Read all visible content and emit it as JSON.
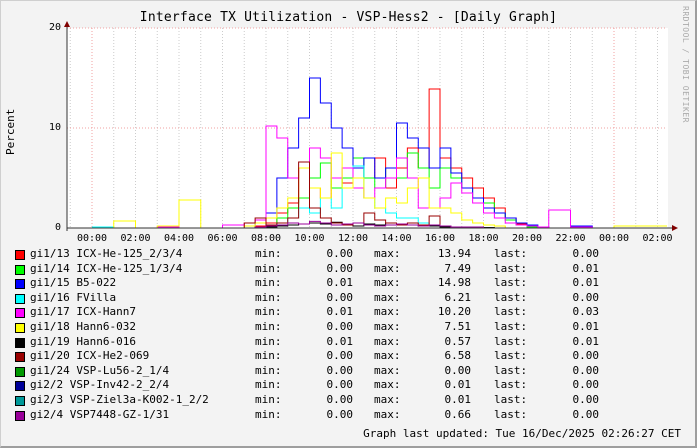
{
  "title": "Interface TX Utilization - VSP-Hess2 - [Daily Graph]",
  "watermark": "RRDTOOL / TOBI OETIKER",
  "footer": {
    "updated": "Graph last updated: Tue 16/Dec/2025 02:26:27 CET"
  },
  "legend_labels": {
    "min": "min:",
    "max": "max:",
    "last": "last:"
  },
  "chart_data": {
    "type": "line",
    "title": "Interface TX Utilization - VSP-Hess2 - [Daily Graph]",
    "xlabel": "",
    "ylabel": "Percent",
    "ylim": [
      0,
      20
    ],
    "yticks": [
      "0",
      "10",
      "20"
    ],
    "xticks": [
      "00:00",
      "02:00",
      "04:00",
      "06:00",
      "08:00",
      "10:00",
      "12:00",
      "14:00",
      "16:00",
      "18:00",
      "20:00",
      "22:00",
      "00:00",
      "02:00"
    ],
    "grid": true,
    "legend_position": "bottom",
    "x_hours": [
      0,
      1,
      2,
      3,
      4,
      5,
      6,
      7,
      7.5,
      8,
      8.5,
      9,
      9.5,
      10,
      10.5,
      11,
      11.5,
      12,
      12.5,
      13,
      13.5,
      14,
      14.5,
      15,
      15.5,
      16,
      16.5,
      17,
      17.5,
      18,
      18.5,
      19,
      19.5,
      20,
      20.5,
      21,
      22,
      23,
      24,
      25,
      26
    ],
    "series": [
      {
        "name": "gi1/13 ICX-He-125_2/3/4",
        "color": "#ff0000",
        "min": "0.00",
        "max": "13.94",
        "last": "0.00",
        "values": [
          0,
          0,
          0,
          0,
          0,
          0,
          0,
          0,
          0.2,
          0.5,
          1.5,
          2.5,
          6,
          4,
          3,
          5,
          4.5,
          6,
          5,
          7,
          4,
          6,
          8,
          6,
          13.9,
          7,
          6,
          5,
          4,
          3,
          2,
          1,
          0.4,
          0.2,
          0.1,
          0,
          0,
          0,
          0,
          0,
          0
        ]
      },
      {
        "name": "gi1/14 ICX-He-125_1/3/4",
        "color": "#00ff00",
        "min": "0.00",
        "max": "7.49",
        "last": "0.01",
        "values": [
          0,
          0,
          0,
          0,
          0,
          0,
          0,
          0,
          0,
          0.3,
          1,
          2,
          3,
          5,
          6.5,
          4,
          5,
          7,
          5,
          4,
          6,
          5,
          7.5,
          6,
          4,
          6,
          5,
          4,
          3,
          2.5,
          1.5,
          0.8,
          0.3,
          0.1,
          0,
          0,
          0,
          0,
          0,
          0,
          0
        ]
      },
      {
        "name": "gi1/15 B5-022",
        "color": "#0000ff",
        "min": "0.01",
        "max": "14.98",
        "last": "0.01",
        "values": [
          0,
          0,
          0,
          0,
          0,
          0,
          0,
          0,
          0.5,
          1.5,
          5,
          8,
          11,
          15,
          12.5,
          10,
          8,
          6,
          7,
          5,
          6,
          10.5,
          9,
          8,
          6,
          8,
          5.5,
          4,
          3,
          2,
          1.5,
          1,
          0.5,
          0.3,
          0.1,
          0,
          0.2,
          0,
          0,
          0,
          0
        ]
      },
      {
        "name": "gi1/16 FVilla",
        "color": "#00ffff",
        "min": "0.00",
        "max": "6.21",
        "last": "0.00",
        "values": [
          0.1,
          0,
          0,
          0,
          0,
          0,
          0,
          0,
          0,
          0.2,
          0.5,
          1,
          2,
          1.5,
          3,
          2,
          4,
          6.2,
          3,
          2,
          1.5,
          1,
          1,
          0.5,
          0.3,
          0.2,
          0.1,
          0.1,
          0,
          0,
          0,
          0,
          0,
          0,
          0,
          0,
          0,
          0,
          0,
          0,
          0
        ]
      },
      {
        "name": "gi1/17 ICX-Hann7",
        "color": "#ff00ff",
        "min": "0.01",
        "max": "10.20",
        "last": "0.03",
        "values": [
          0,
          0,
          0,
          0.1,
          0,
          0,
          0.3,
          0.5,
          0.8,
          10.2,
          9,
          5,
          6,
          8,
          7,
          5,
          6,
          4,
          3,
          4,
          5,
          7,
          5,
          2,
          2,
          3,
          4.5,
          3.5,
          2.5,
          1.5,
          1,
          0.5,
          0.3,
          0.2,
          0.1,
          1.8,
          0.1,
          0,
          0,
          0,
          0
        ]
      },
      {
        "name": "gi1/18 Hann6-032",
        "color": "#ffff00",
        "min": "0.00",
        "max": "7.51",
        "last": "0.01",
        "values": [
          0,
          0.7,
          0,
          0.2,
          2.8,
          0,
          0,
          0.2,
          0.5,
          1,
          2,
          3,
          6,
          4,
          3,
          7.5,
          4,
          5,
          3,
          2,
          3,
          2.5,
          4,
          5,
          2,
          2,
          1.5,
          0.8,
          0.5,
          0.3,
          0.2,
          0,
          0,
          0,
          0,
          0,
          0,
          0,
          0.2,
          0.2,
          0.2
        ]
      },
      {
        "name": "gi1/19 Hann6-016",
        "color": "#000000",
        "min": "0.01",
        "max": "0.57",
        "last": "0.01",
        "values": [
          0,
          0,
          0,
          0,
          0,
          0,
          0,
          0,
          0.1,
          0.1,
          0.2,
          0.3,
          0.4,
          0.5,
          0.4,
          0.57,
          0.3,
          0.2,
          0.4,
          0.3,
          0.5,
          0.4,
          0.3,
          0.2,
          0.2,
          0.1,
          0.1,
          0.1,
          0.05,
          0.05,
          0,
          0,
          0,
          0,
          0,
          0,
          0,
          0,
          0,
          0,
          0
        ]
      },
      {
        "name": "gi1/20 ICX-He2-069",
        "color": "#990000",
        "min": "0.00",
        "max": "6.58",
        "last": "0.00",
        "values": [
          0,
          0,
          0,
          0,
          0,
          0,
          0,
          0.5,
          1,
          0.3,
          0.5,
          1,
          6.6,
          2,
          1,
          0.5,
          0.3,
          0.5,
          1.5,
          0.8,
          0.5,
          0.3,
          0.5,
          0.3,
          1.2,
          0.2,
          0.1,
          0.1,
          0,
          0,
          0,
          0,
          0,
          0,
          0,
          0,
          0,
          0,
          0,
          0,
          0
        ]
      },
      {
        "name": "gi1/24 VSP-Lu56-2_1/4",
        "color": "#009900",
        "min": "0.00",
        "max": "0.00",
        "last": "0.00",
        "values": [
          0,
          0,
          0,
          0,
          0,
          0,
          0,
          0,
          0,
          0,
          0,
          0,
          0,
          0,
          0,
          0,
          0,
          0,
          0,
          0,
          0,
          0,
          0,
          0,
          0,
          0,
          0,
          0,
          0,
          0,
          0,
          0,
          0,
          0,
          0,
          0,
          0,
          0,
          0,
          0,
          0
        ]
      },
      {
        "name": "gi2/2 VSP-Inv42-2_2/4",
        "color": "#000099",
        "min": "0.00",
        "max": "0.01",
        "last": "0.00",
        "values": [
          0,
          0,
          0,
          0,
          0,
          0,
          0,
          0,
          0,
          0,
          0,
          0,
          0,
          0,
          0,
          0,
          0,
          0,
          0,
          0,
          0,
          0,
          0,
          0,
          0,
          0,
          0,
          0,
          0,
          0,
          0,
          0,
          0,
          0,
          0,
          0,
          0,
          0,
          0,
          0,
          0
        ]
      },
      {
        "name": "gi2/3 VSP-Ziel3a-K002-1_2/2",
        "color": "#009999",
        "min": "0.00",
        "max": "0.01",
        "last": "0.00",
        "values": [
          0,
          0,
          0,
          0,
          0,
          0,
          0,
          0,
          0,
          0,
          0,
          0,
          0,
          0,
          0,
          0,
          0,
          0,
          0,
          0,
          0,
          0,
          0,
          0,
          0,
          0,
          0,
          0,
          0,
          0,
          0,
          0,
          0,
          0,
          0,
          0,
          0,
          0,
          0,
          0,
          0
        ]
      },
      {
        "name": "gi2/4 VSP7448-GZ-1/31",
        "color": "#990099",
        "min": "0.00",
        "max": "0.66",
        "last": "0.00",
        "values": [
          0,
          0,
          0,
          0,
          0,
          0,
          0,
          0,
          0.1,
          0.2,
          0.3,
          0.5,
          0.4,
          0.66,
          0.5,
          0.3,
          0.4,
          0.5,
          0.3,
          0.2,
          0.3,
          0.4,
          0.3,
          0.2,
          0.3,
          0.2,
          0.1,
          0.1,
          0.1,
          0,
          0,
          0,
          0,
          0,
          0,
          0,
          0,
          0,
          0,
          0,
          0
        ]
      }
    ]
  }
}
